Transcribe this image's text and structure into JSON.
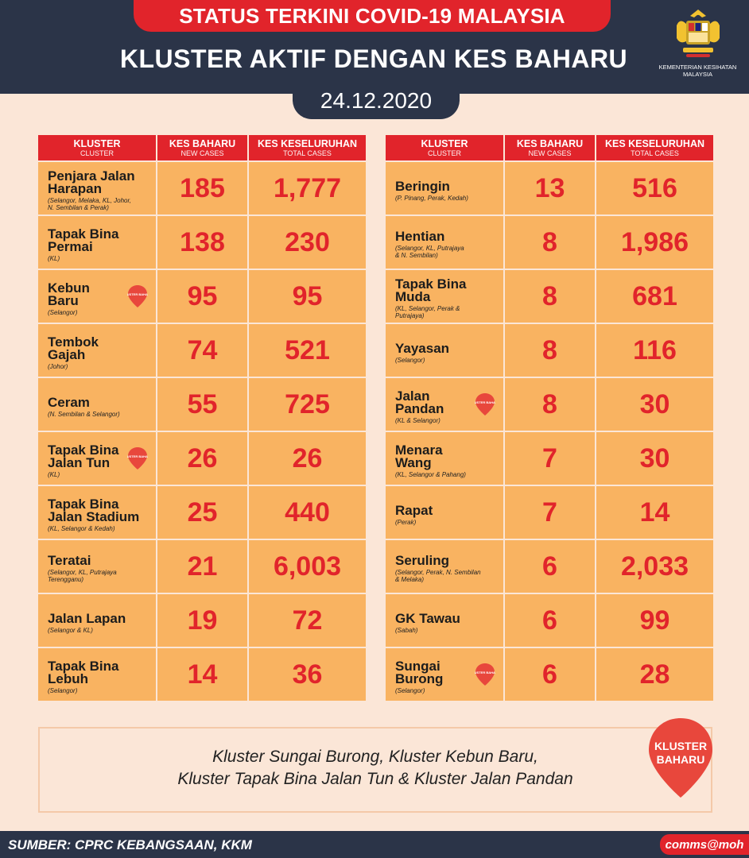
{
  "header": {
    "title": "STATUS TERKINI COVID-19 MALAYSIA",
    "subtitle": "KLUSTER AKTIF DENGAN KES BAHARU",
    "date": "24.12.2020",
    "ministry": "KEMENTERIAN KESIHATAN MALAYSIA"
  },
  "columns": {
    "cluster": "KLUSTER",
    "cluster_sub": "CLUSTER",
    "new": "KES BAHARU",
    "new_sub": "NEW CASES",
    "total": "KES KESELURUHAN",
    "total_sub": "TOTAL CASES"
  },
  "badge_text": "KLUSTER BAHARU",
  "left_rows": [
    {
      "name": "Penjara Jalan\nHarapan",
      "states": "(Selangor, Melaka, KL, Johor,\nN. Sembilan & Perak)",
      "new": "185",
      "total": "1,777",
      "new_cluster": false
    },
    {
      "name": "Tapak Bina\nPermai",
      "states": "(KL)",
      "new": "138",
      "total": "230",
      "new_cluster": false
    },
    {
      "name": "Kebun\nBaru",
      "states": "(Selangor)",
      "new": "95",
      "total": "95",
      "new_cluster": true
    },
    {
      "name": "Tembok\nGajah",
      "states": "(Johor)",
      "new": "74",
      "total": "521",
      "new_cluster": false
    },
    {
      "name": "Ceram",
      "states": "(N. Sembilan & Selangor)",
      "new": "55",
      "total": "725",
      "new_cluster": false
    },
    {
      "name": "Tapak Bina\nJalan Tun",
      "states": "(KL)",
      "new": "26",
      "total": "26",
      "new_cluster": true
    },
    {
      "name": "Tapak Bina\nJalan Stadium",
      "states": "(KL, Selangor & Kedah)",
      "new": "25",
      "total": "440",
      "new_cluster": false
    },
    {
      "name": "Teratai",
      "states": "(Selangor, KL, Putrajaya\nTerengganu)",
      "new": "21",
      "total": "6,003",
      "new_cluster": false
    },
    {
      "name": "Jalan Lapan",
      "states": "(Selangor & KL)",
      "new": "19",
      "total": "72",
      "new_cluster": false
    },
    {
      "name": "Tapak Bina\nLebuh",
      "states": "(Selangor)",
      "new": "14",
      "total": "36",
      "new_cluster": false
    }
  ],
  "right_rows": [
    {
      "name": "Beringin",
      "states": "(P. Pinang, Perak, Kedah)",
      "new": "13",
      "total": "516",
      "new_cluster": false
    },
    {
      "name": "Hentian",
      "states": "(Selangor, KL, Putrajaya\n& N. Sembilan)",
      "new": "8",
      "total": "1,986",
      "new_cluster": false
    },
    {
      "name": "Tapak Bina\nMuda",
      "states": "(KL, Selangor, Perak &\nPutrajaya)",
      "new": "8",
      "total": "681",
      "new_cluster": false
    },
    {
      "name": "Yayasan",
      "states": "(Selangor)",
      "new": "8",
      "total": "116",
      "new_cluster": false
    },
    {
      "name": "Jalan\nPandan",
      "states": "(KL & Selangor)",
      "new": "8",
      "total": "30",
      "new_cluster": true
    },
    {
      "name": "Menara\nWang",
      "states": "(KL, Selangor & Pahang)",
      "new": "7",
      "total": "30",
      "new_cluster": false
    },
    {
      "name": "Rapat",
      "states": "(Perak)",
      "new": "7",
      "total": "14",
      "new_cluster": false
    },
    {
      "name": "Seruling",
      "states": "(Selangor, Perak, N. Sembilan\n& Melaka)",
      "new": "6",
      "total": "2,033",
      "new_cluster": false
    },
    {
      "name": "GK Tawau",
      "states": "(Sabah)",
      "new": "6",
      "total": "99",
      "new_cluster": false
    },
    {
      "name": "Sungai\nBurong",
      "states": "(Selangor)",
      "new": "6",
      "total": "28",
      "new_cluster": true
    }
  ],
  "note": {
    "line1": "Kluster Sungai Burong, Kluster Kebun Baru,",
    "line2": "Kluster Tapak Bina Jalan Tun & Kluster Jalan Pandan",
    "badge_line1": "KLUSTER",
    "badge_line2": "BAHARU"
  },
  "footer": {
    "source": "SUMBER: CPRC KEBANGSAAN, KKM",
    "handle": "comms@moh"
  },
  "colors": {
    "navy": "#2b3448",
    "red": "#e1242b",
    "cell": "#f9b361",
    "background": "#fbe6d7"
  }
}
